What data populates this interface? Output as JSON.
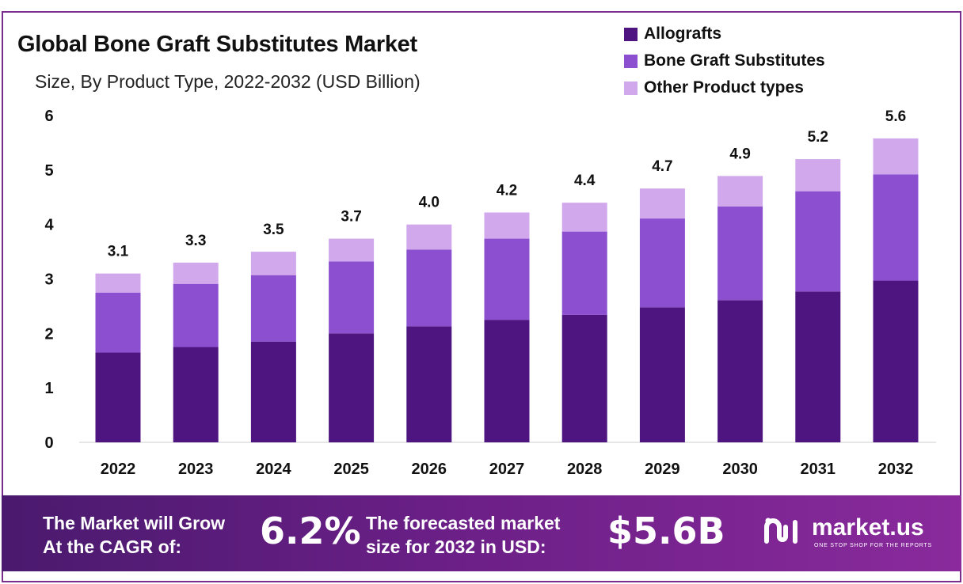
{
  "chart_data": {
    "type": "bar",
    "stacked": true,
    "title": "Global Bone Graft Substitutes Market",
    "subtitle": "Size, By Product Type, 2022-2032 (USD Billion)",
    "categories": [
      "2022",
      "2023",
      "2024",
      "2025",
      "2026",
      "2027",
      "2028",
      "2029",
      "2030",
      "2031",
      "2032"
    ],
    "series": [
      {
        "name": "Allografts",
        "color": "#4e1580",
        "values": [
          1.65,
          1.75,
          1.85,
          2.0,
          2.13,
          2.25,
          2.34,
          2.48,
          2.61,
          2.77,
          2.97
        ]
      },
      {
        "name": "Bone Graft Substitutes",
        "color": "#8b4fcf",
        "values": [
          1.1,
          1.16,
          1.22,
          1.32,
          1.41,
          1.49,
          1.53,
          1.63,
          1.72,
          1.84,
          1.95
        ]
      },
      {
        "name": "Other Product types",
        "color": "#d2a8ec",
        "values": [
          0.35,
          0.39,
          0.43,
          0.42,
          0.46,
          0.48,
          0.53,
          0.55,
          0.56,
          0.59,
          0.66
        ]
      }
    ],
    "totals": [
      "3.1",
      "3.3",
      "3.5",
      "3.7",
      "4.0",
      "4.2",
      "4.4",
      "4.7",
      "4.9",
      "5.2",
      "5.6"
    ],
    "y_ticks": [
      "0",
      "1",
      "2",
      "3",
      "4",
      "5",
      "6"
    ],
    "ylim": [
      0,
      6
    ],
    "grid": false,
    "legend_position": "top-right"
  },
  "footer": {
    "cagr_line1": "The Market will Grow",
    "cagr_line2": "At the CAGR of:",
    "cagr_value": "6.2%",
    "forecast_line1": "The forecasted market",
    "forecast_line2": "size for 2032 in USD:",
    "forecast_value": "$5.6B",
    "brand_name": "market.us",
    "brand_tagline": "ONE STOP SHOP FOR THE REPORTS"
  }
}
